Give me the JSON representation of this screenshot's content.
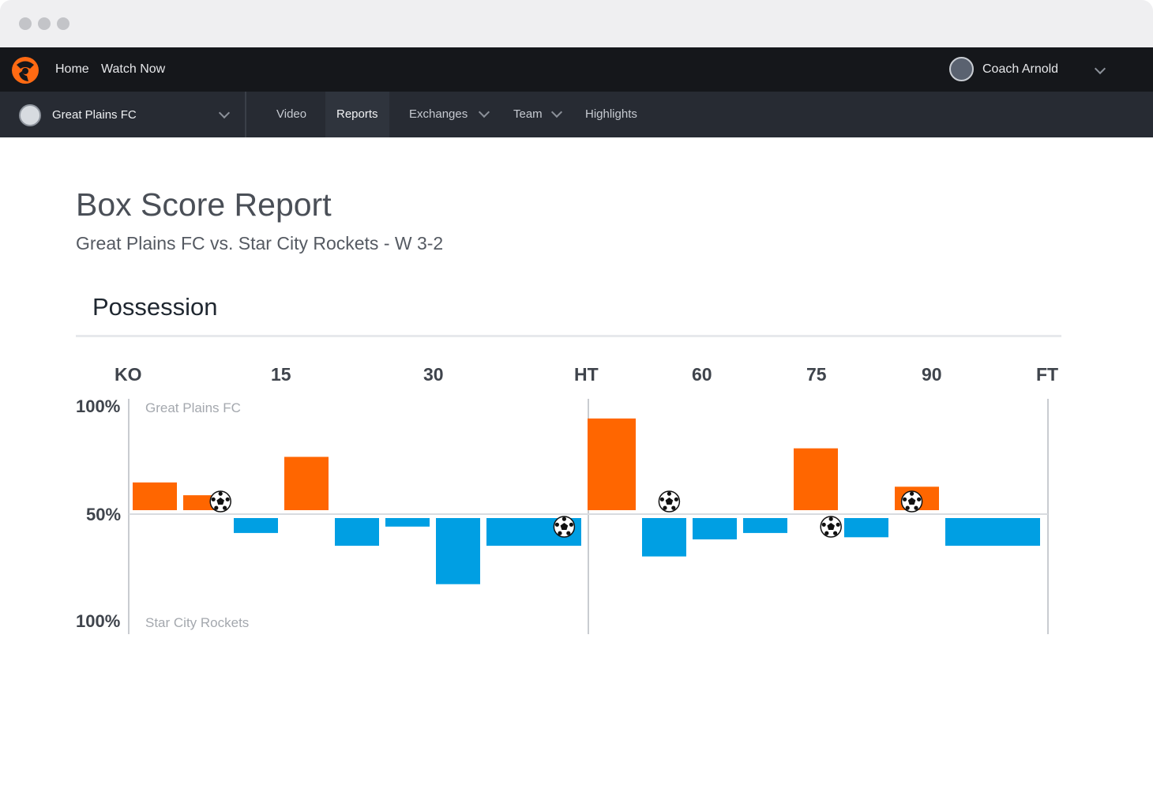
{
  "nav": {
    "home": "Home",
    "watch_now": "Watch Now",
    "user": "Coach Arnold"
  },
  "subnav": {
    "team": "Great Plains FC",
    "tabs": [
      "Video",
      "Reports",
      "Exchanges",
      "Team",
      "Highlights"
    ],
    "active_tab": "Reports"
  },
  "report": {
    "title": "Box Score Report",
    "subtitle": "Great Plains FC vs. Star City Rockets - W 3-2",
    "section": "Possession"
  },
  "chart_data": {
    "type": "bar",
    "x_ticks": [
      "KO",
      "15",
      "30",
      "HT",
      "60",
      "75",
      "90",
      "FT"
    ],
    "y_ticks": [
      "100%",
      "50%",
      "100%"
    ],
    "home_team": "Great Plains FC",
    "away_team": "Star City Rockets",
    "colors": {
      "home": "#ff6600",
      "away": "#009fe3"
    },
    "intervals": [
      {
        "team": "home",
        "value": 63,
        "minutes": 5
      },
      {
        "team": "home",
        "value": 57,
        "minutes": 5
      },
      {
        "team": "away",
        "value": 57,
        "minutes": 5
      },
      {
        "team": "home",
        "value": 75,
        "minutes": 5
      },
      {
        "team": "away",
        "value": 63,
        "minutes": 5
      },
      {
        "team": "away",
        "value": 54,
        "minutes": 5
      },
      {
        "team": "away",
        "value": 81,
        "minutes": 5
      },
      {
        "team": "away",
        "value": 63,
        "minutes": 10
      },
      {
        "team": "home",
        "value": 93,
        "minutes": 5
      },
      {
        "team": "away",
        "value": 68,
        "minutes": 5
      },
      {
        "team": "away",
        "value": 60,
        "minutes": 5
      },
      {
        "team": "away",
        "value": 57,
        "minutes": 5
      },
      {
        "team": "home",
        "value": 79,
        "minutes": 5
      },
      {
        "team": "away",
        "value": 59,
        "minutes": 5
      },
      {
        "team": "home",
        "value": 61,
        "minutes": 5
      },
      {
        "team": "away",
        "value": 63,
        "minutes": 10
      }
    ],
    "goals": [
      {
        "team": "home",
        "minute": 9
      },
      {
        "team": "away",
        "minute": 43
      },
      {
        "team": "home",
        "minute": 53
      },
      {
        "team": "away",
        "minute": 69
      },
      {
        "team": "home",
        "minute": 77
      }
    ]
  }
}
